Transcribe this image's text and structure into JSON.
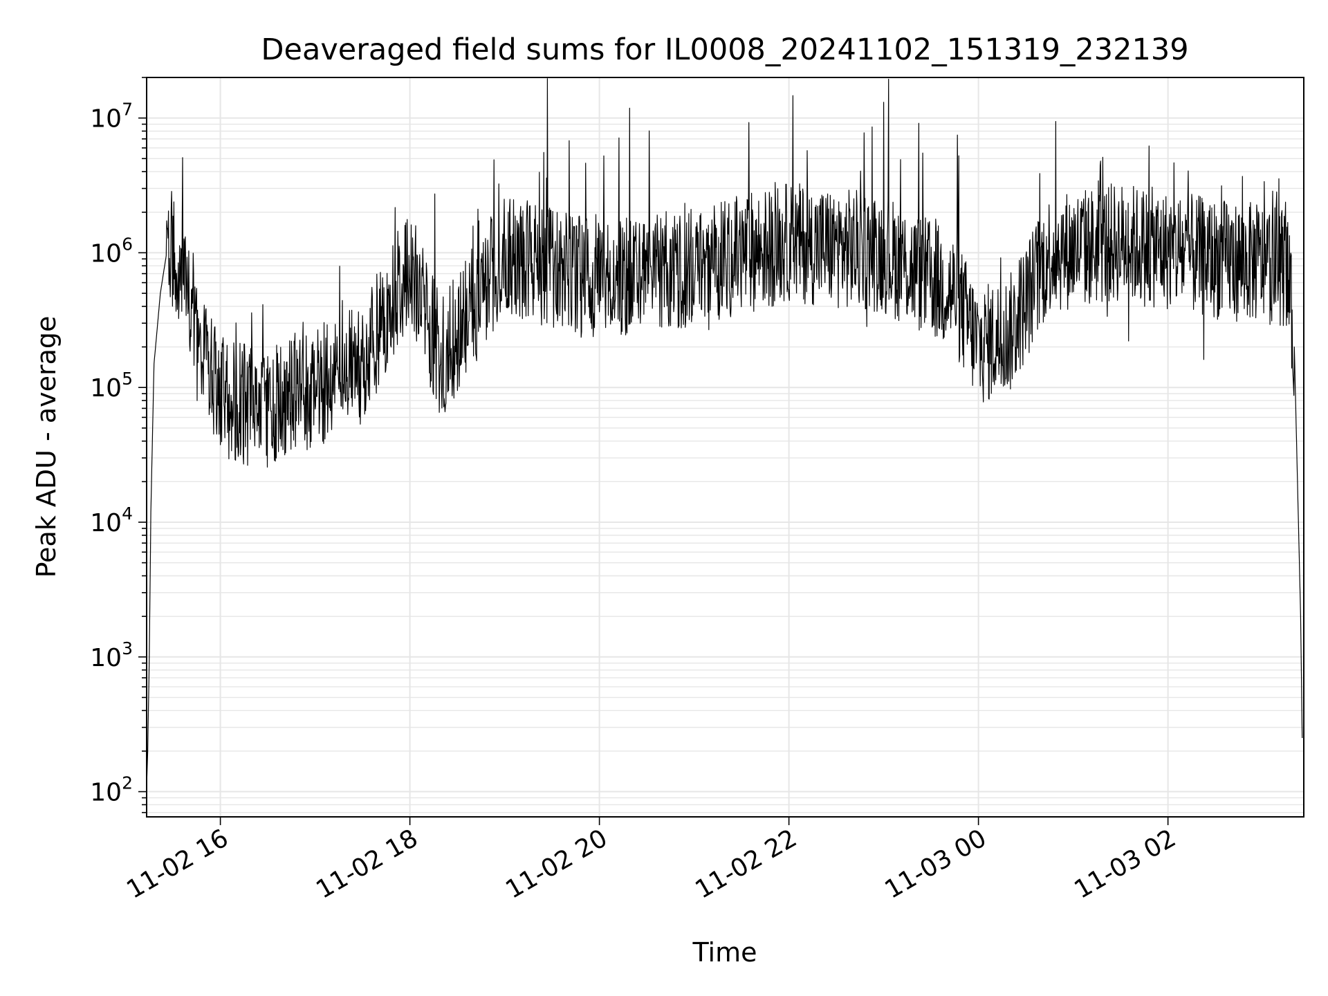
{
  "chart_data": {
    "type": "line",
    "title": "Deaveraged field sums for IL0008_20241102_151319_232139",
    "xlabel": "Time",
    "ylabel": "Peak ADU - average",
    "yscale": "log",
    "ylim": [
      65,
      20000000
    ],
    "xlim": [
      "2024-11-02 15:13:19",
      "2024-11-03 03:26:00"
    ],
    "grid": true,
    "line_color": "#000000",
    "grid_color": "#e6e6e6",
    "x_ticks": [
      {
        "value": "2024-11-02 16:00",
        "label": "11-02 16"
      },
      {
        "value": "2024-11-02 18:00",
        "label": "11-02 18"
      },
      {
        "value": "2024-11-02 20:00",
        "label": "11-02 20"
      },
      {
        "value": "2024-11-02 22:00",
        "label": "11-02 22"
      },
      {
        "value": "2024-11-03 00:00",
        "label": "11-03 00"
      },
      {
        "value": "2024-11-03 02:00",
        "label": "11-03 02"
      }
    ],
    "y_ticks": [
      {
        "value": 100,
        "base": "10",
        "exp": "2"
      },
      {
        "value": 1000,
        "base": "10",
        "exp": "3"
      },
      {
        "value": 10000,
        "base": "10",
        "exp": "4"
      },
      {
        "value": 100000,
        "base": "10",
        "exp": "5"
      },
      {
        "value": 1000000,
        "base": "10",
        "exp": "6"
      },
      {
        "value": 10000000,
        "base": "10",
        "exp": "7"
      }
    ],
    "series": [
      {
        "x": [
          "2024-11-02 15:13:19",
          "2024-11-02 15:14:00",
          "2024-11-02 15:15:00",
          "2024-11-02 15:16:00",
          "2024-11-02 15:18:00",
          "2024-11-02 15:22:00",
          "2024-11-02 15:26:00",
          "2024-11-02 15:30:00",
          "2024-11-02 15:35:00",
          "2024-11-02 15:40:00",
          "2024-11-02 15:45:00",
          "2024-11-02 16:00:00",
          "2024-11-02 16:30:00",
          "2024-11-02 17:00:00",
          "2024-11-02 17:30:00",
          "2024-11-02 18:00:00",
          "2024-11-02 18:20:00",
          "2024-11-02 18:40:00",
          "2024-11-02 19:00:00",
          "2024-11-02 20:00:00",
          "2024-11-02 21:00:00",
          "2024-11-02 22:00:00",
          "2024-11-02 23:00:00",
          "2024-11-02 23:45:00",
          "2024-11-03 00:00:00",
          "2024-11-03 00:20:00",
          "2024-11-03 00:45:00",
          "2024-11-03 01:30:00",
          "2024-11-03 02:30:00",
          "2024-11-03 03:15:00",
          "2024-11-03 03:20:00",
          "2024-11-03 03:24:00",
          "2024-11-03 03:25:00"
        ],
        "y": [
          110,
          200,
          1000,
          12000,
          150000,
          500000,
          1000000,
          1100000,
          700000,
          400000,
          220000,
          80000,
          70000,
          100000,
          150000,
          800000,
          160000,
          400000,
          1000000,
          600000,
          800000,
          1200000,
          1000000,
          500000,
          200000,
          250000,
          1000000,
          1200000,
          900000,
          800000,
          200000,
          2000,
          250
        ]
      }
    ]
  }
}
